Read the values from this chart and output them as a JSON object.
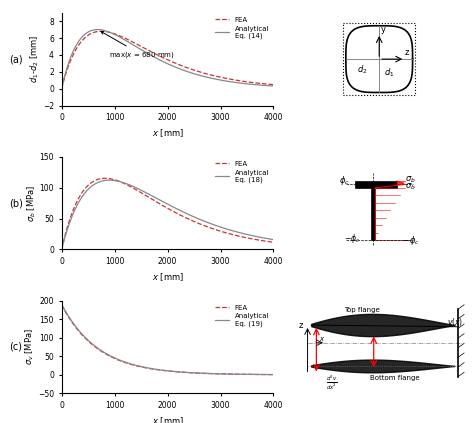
{
  "panel_a": {
    "ylabel": "$d_1$-$d_2$ [mm]",
    "xlabel": "$x$ [mm]",
    "ylim": [
      -2,
      9
    ],
    "xlim": [
      0,
      4000
    ],
    "yticks": [
      -2,
      0,
      2,
      4,
      6,
      8
    ],
    "xticks": [
      0,
      1000,
      2000,
      3000,
      4000
    ],
    "annotation": "max($x$ = 680 mm)",
    "label": "(a)"
  },
  "panel_b": {
    "ylabel": "$\\sigma_b$ [MPa]",
    "xlabel": "$x$ [mm]",
    "ylim": [
      0,
      150
    ],
    "xlim": [
      0,
      4000
    ],
    "yticks": [
      0,
      50,
      100,
      150
    ],
    "xticks": [
      0,
      1000,
      2000,
      3000,
      4000
    ],
    "label": "(b)"
  },
  "panel_c": {
    "ylabel": "$\\sigma_v$ [MPa]",
    "xlabel": "$x$ [mm]",
    "ylim": [
      -50,
      200
    ],
    "xlim": [
      0,
      4000
    ],
    "yticks": [
      -50,
      0,
      50,
      100,
      150,
      200
    ],
    "xticks": [
      0,
      1000,
      2000,
      3000,
      4000
    ],
    "label": "(c)"
  },
  "fea_color": "#cc3333",
  "analytical_color": "#888888",
  "fea_label": "FEA",
  "analytical_label_a": "Analytical\nEq. (14)",
  "analytical_label_b": "Analytical\nEq. (18)",
  "analytical_label_c": "Analytical\nEq. (19)"
}
